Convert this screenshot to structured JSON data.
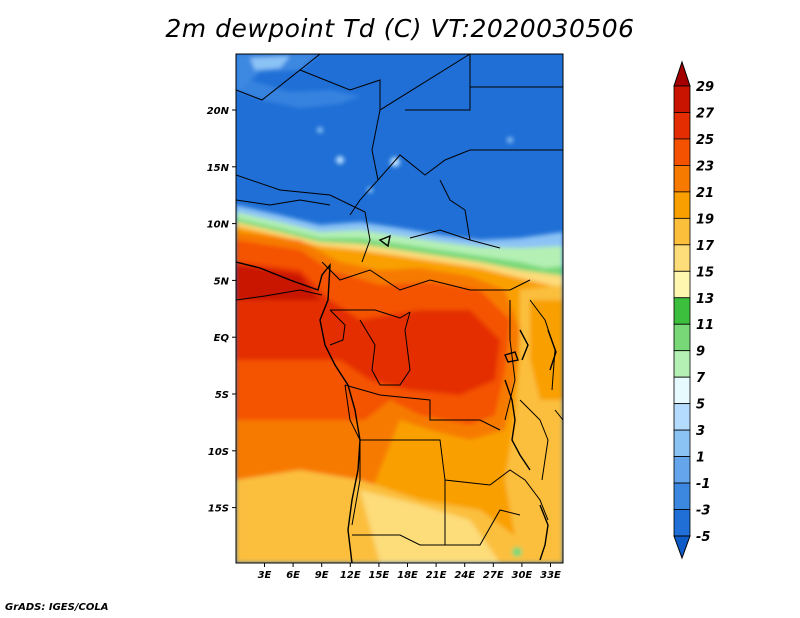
{
  "title": "2m dewpoint Td (C) VT:2020030506",
  "credit": "GrADS: IGES/COLA",
  "map": {
    "y_labels": [
      "20N",
      "15N",
      "10N",
      "5N",
      "EQ",
      "5S",
      "10S",
      "15S"
    ],
    "x_labels": [
      "3E",
      "6E",
      "9E",
      "12E",
      "15E",
      "18E",
      "21E",
      "24E",
      "27E",
      "30E",
      "33E"
    ]
  },
  "colorbar": {
    "labels": [
      "29",
      "27",
      "25",
      "23",
      "21",
      "19",
      "17",
      "15",
      "13",
      "11",
      "9",
      "7",
      "5",
      "3",
      "1",
      "-1",
      "-3",
      "-5"
    ],
    "colors": [
      "#a50000",
      "#c81400",
      "#e42d00",
      "#f45200",
      "#f77a00",
      "#f9a000",
      "#fbbf3c",
      "#fddc7a",
      "#fff6b0",
      "#3cbf3c",
      "#78d878",
      "#b4f0b4",
      "#e6faff",
      "#b4dcff",
      "#8cc3f5",
      "#64a5eb",
      "#3c88e1",
      "#1f6fd6",
      "#0f5bc8"
    ]
  }
}
